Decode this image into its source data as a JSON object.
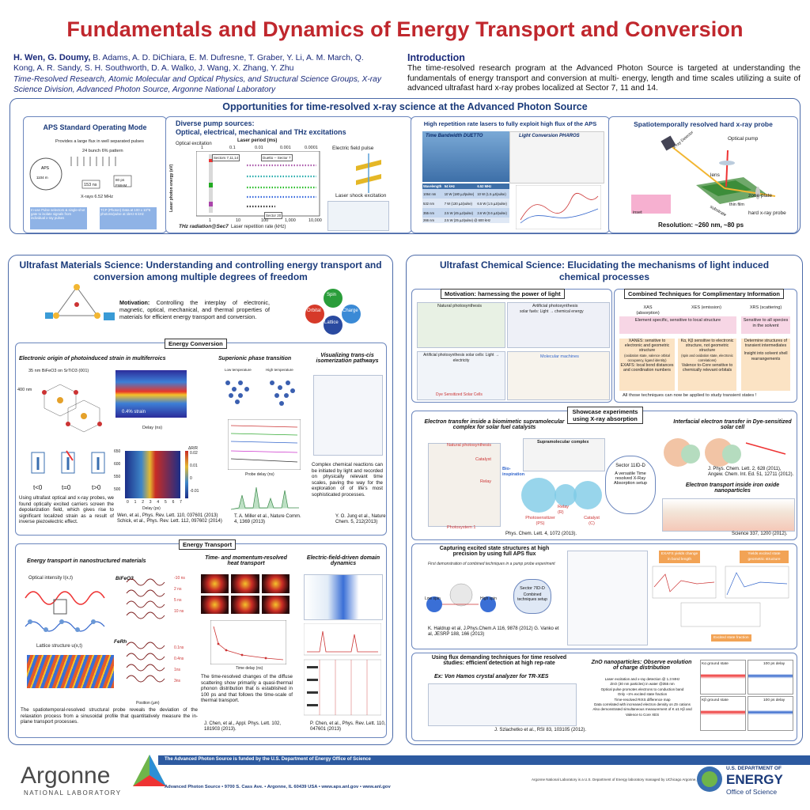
{
  "title": "Fundamentals and Dynamics of Energy Transport and Conversion",
  "authors_lead": "H. Wen, G. Doumy,",
  "authors_rest": " B. Adams, A. D. DiChiara, E. M. Dufresne, T. Graber, Y. Li, A. M. March, Q. Kong, A. R. Sandy, S. H. Southworth, D. A. Walko, J. Wang, X. Zhang, Y. Zhu",
  "affiliation": "Time-Resolved Research, Atomic Molecular and Optical Physics, and Structural Science Groups, X-ray Science Division, Advanced Photon Source, Argonne National Laboratory",
  "intro": {
    "heading": "Introduction",
    "text": "The time-resolved research program at the Advanced Photon Source is targeted at understanding the fundamentals of energy transport and conversion at multi- energy, length and time scales utilizing a suite of advanced ultrafast hard x-ray probes localized at Sector 7, 11 and 14."
  },
  "opportunities": {
    "heading": "Opportunities for time-resolved x-ray science at the Advanced Photon Source",
    "aps_mode": {
      "title": "APS Standard Operating Mode",
      "note1": "Provides a large flux in well separated pulses",
      "note2": "24 bunch 6% pattern",
      "aps": "APS",
      "circ": "1104 m",
      "ns": "153 ns",
      "ps": "80 ps FWHM",
      "rate": "X-rays 6.52 MHz",
      "info1": "In-use Pulse selectors & single-shot gate to isolate signals from individual x-ray pulses",
      "info2": "TCP (Photon) Data at 100 x 10^6 photons/pulse at 1kHz-6 kHz"
    },
    "pump": {
      "title1": "Diverse pump sources:",
      "title2": "Optical, electrical, mechanical and THz excitations",
      "optical": "Optical excitation",
      "period": "Laser period (ms)",
      "p_ticks": [
        "1",
        "0.1",
        "0.01",
        "0.001",
        "0.0001"
      ],
      "ylab": "Laser photon energy (eV)",
      "xlab": "Laser repetition rate (kHz)",
      "x_ticks": [
        "1",
        "10",
        "100",
        "1,000",
        "10,000"
      ],
      "sector1": "Sectors 7,11,14",
      "sector2": "Duetto -- Sector 7",
      "sector3": "Sector 20",
      "electric": "Electric field pulse",
      "shock": "Laser shock excitation",
      "thz": "THz radiation@Sec7"
    },
    "lasers": {
      "title": "High repetition rate lasers to fully exploit high flux of the APS",
      "duetto": "Time Bandwidth DUETTO",
      "pharos": "Light Conversion PHAROS",
      "table_head": [
        "Wavelength",
        "54 kHz",
        "6.52 MHz"
      ],
      "table_rows": [
        [
          "1064 nm",
          "10 W (180 µJ/pulse)",
          "10 W (1.5 µJ/pulse)"
        ],
        [
          "532 nm",
          "7 W (130 µJ/pulse)",
          "6.5 W (1.5 µJ/pulse)"
        ],
        [
          "355 nm",
          "2.5 W (45 µJ/pulse)",
          "3.6 W (0.6 µJ/pulse)"
        ],
        [
          "266 nm",
          "2.5 W (25 µJ/pulse) @ 600 kHz",
          ""
        ]
      ]
    },
    "probe": {
      "title": "Spatiotemporally resolved hard x-ray probe",
      "xray": "X-ray Detector",
      "pump": "Optical pump",
      "lens": "lens",
      "zone": "zone plate",
      "film": "thin film",
      "sub": "substrate",
      "hard": "hard x-ray probe",
      "res": "Resolution: ~260 nm, ~80 ps",
      "inset": "inset"
    }
  },
  "materials": {
    "heading": "Ultrafast Materials Science: Understanding and controlling energy transport and conversion among multiple degrees of freedom",
    "motivation_label": "Motivation:",
    "motivation_text": " Controlling the interplay of electronic, magnetic, optical, mechanical, and thermal properties of materials for efficient energy transport and conversion.",
    "spin": "Spin",
    "orbital": "Orbital",
    "charge": "Charge",
    "lattice": "Lattice",
    "energy_conversion": "Energy Conversion",
    "ec1_title": "Electronic origin of photoinduced strain in multiferroics",
    "ec1_sample": "35 nm BiFeO3 on SrTiO3 (001)",
    "ec1_400": "400 nm",
    "ec1_strain": "0.4% strain",
    "ec1_delay": "Delay (ns)",
    "ec1_lt": [
      "t<0",
      "t=0",
      "t>0"
    ],
    "ec1_text": "Using ultrafast optical and x-ray probes, we found optically excited carriers screen the depolarization field, which gives rise to significant localized strain as a result of inverse piezoelectric effect.",
    "ec1_ref1": "Wen, et al., Phys. Rev. Lett. 110, 037601 (2013)",
    "ec1_ref2": "Schick, et al., Phys. Rev. Lett. 112, 097602 (2014)",
    "ec1_dR": "ΔR/R",
    "ec1_wl": "Wavelength (nm)",
    "ec1_y_ticks": [
      "650",
      "600",
      "550",
      "500"
    ],
    "ec1_cbar": [
      "0.02",
      "0.01",
      "0",
      "-0.01"
    ],
    "ec1_delay_ps": "Delay (ps)",
    "ec1_x_ticks": [
      "0",
      "1",
      "2",
      "3",
      "4",
      "5",
      "6",
      "7"
    ],
    "ec2_title": "Superionic phase transition",
    "ec2_lt": "Low temperature",
    "ec2_ht": "High temperature",
    "ec2_probe": "Probe delay (ns)",
    "ec2_ref": "T. A. Miller et al., Nature Comm. 4, 1369 (2013)",
    "ec3_title": "Visualizing trans-cis isomerization pathways",
    "ec3_text": "Complex chemical reactions can be initiated by light and recorded on physically relevant time scales, paving the way for the exploration of of life's most sophisticated processes.",
    "ec3_ref": "Y. O. Jung et al., Nature Chem. 5, 212(2013)",
    "energy_transport": "Energy Transport",
    "et1_title": "Energy transport  in nanostructured materials",
    "et1_intensity": "Optical intensity I(x,t)",
    "et1_lattice": "Lattice structure u(x,t)",
    "et1_bifeo": "BiFeO3",
    "et1_feRh": "FeRh",
    "et1_pos": "Position (µm)",
    "et1_int": "Intensity (a.u.)",
    "et1_text": "The spatiotemporal-resolved structural probe reveals the deviation of the relaxation process from a sinusoidal profile that quantitatively measure the in-plane transport processes.",
    "et1_times": [
      "-10 ns",
      "2 ns",
      "5 ns",
      "10 ns",
      "20 ns"
    ],
    "et1_times2": [
      "0.1ns",
      "0.4ns",
      "1ns",
      "3ns",
      "7.4ns"
    ],
    "et2_title": "Time- and momentum-resolved heat transport",
    "et2_text": "The time-resolved changes of the diffuse scattering show primarily a quasi-thermal phonon distribution that is established in 100 ps and that follows the time-scale of thermal transport.",
    "et2_ref": "J. Chen, et al., Appl. Phys. Lett. 102, 181903 (2013).",
    "et2_time": "Time delay (ns)",
    "et3_title": "Electric-field-driven domain dynamics",
    "et3_ref": "P. Chen, et al., Phys. Rev. Lett. 110, 047601 (2013)"
  },
  "chemical": {
    "heading": "Ultrafast Chemical Science: Elucidating the mechanisms of light induced chemical processes",
    "motivation_title": "Motivation: harnessing the power of light",
    "np": "Natural photosynthesis",
    "ap": "Artificial photosynthesis",
    "ap2": "solar fuels: Light → chemical energy",
    "ap3": "Artificial photosynthesis solar cells: Light → electricity",
    "mol": "Molecular machines",
    "dye": "Dye Sensitized Solar Cells",
    "combined_title": "Combined Techniques for Complimentary Information",
    "xas": "XAS (absorption)",
    "xes": "XES (emission)",
    "xrs": "XRS (scattering)",
    "elem": "Element specific, sensitive to local structure",
    "solv": "Sensitive to all species in the solvent",
    "xanes": "XANES:  sensitive to electronic and geometric structure",
    "exafs": "EXAFS:  local bond distances and coordination numbers",
    "kb": "Kα, Kβ sensitive to electronic structure, not geometric structure",
    "val": "Valence to-Core sensitive to chemically relevant orbitals",
    "det": "Determine structures of transient intermediates",
    "ins": "Insight into solvent shell rearrangements",
    "xanes_sub": "(oxidation state, valence orbital occupancy, ligand identity)",
    "kb_sub": "(spin and oxidation state, electronic correlations)",
    "all": "All those techniques can now be applied to study transient states !",
    "showcase": "Showcase experiments using X-ray absorption",
    "et_title": "Electron transfer inside a biomimetic supramolecular complex for solar fuel catalysts",
    "np2": "Natural photosynthesis",
    "catalyst": "Catalyst",
    "relay": "Relay",
    "bio": "Bio-inspiration",
    "supra": "Supramolecular complex",
    "ps1": "Photosystem 1",
    "photosens": "Photosensitizer (PS)",
    "relay2": "Relay (R)",
    "cat2": "Catalyst (C)",
    "psref": "Phys. Chem. Lett. 4, 1072 (2013).",
    "sector": "Sector 11ID-D",
    "versatile": "A versatile Time resolved X-Ray Absorption setup",
    "inter_title": "Interfacial electron transfer in Dye-sensitized solar cell",
    "jp": "J. Phys. Chem. Lett. 2, 628 (2011), Angew. Chem. Int. Ed. 51, 12711 (2012).",
    "iron_title": "Electron transport inside iron oxide nanoparticles",
    "science": "Science 337, 1200 (2012).",
    "cap_title": "Capturing excited state structures at high precision by using full APS flux",
    "cap_sub": "First demonstration of combined techniques in a pump probe experiment",
    "sector7": "Sector 7ID-D",
    "combined_setup": "Combined techniques setup",
    "low": "Low spin",
    "high": "High spin",
    "cap_ref": "K. Haldrup et al, J.Phys.Chem.A 116, 9878 (2012) G. Vanko et al, JESRP 188, 166 (2013)",
    "exafs_change": "EXAFS yields change in bond length",
    "xdiff": "Yields excited state geometric structure",
    "excited": "Excited state fraction",
    "flux_title": "Using flux demanding techniques for time resolved studies: efficient detection at high rep-rate",
    "zno_title": "ZnO nanoparticles:  Observe evolution of charge distribution",
    "vh": "Ex: Von Hamos crystal analyzer for TR-XES",
    "vhref": "J. Szlachetko et al., RSI 83, 103105 (2012).",
    "zno_lines": [
      "Laser excitation and x-ray detection @ 1.3 MHz",
      "ZnO (30 nm particles) in water @355 nm",
      "Optical pulse promotes electrons to conduction band",
      "Only ~1% excited state fraction",
      "Time-resolved RIXS difference map",
      "Data correlated with increased electron density on Zn cations",
      "Also demonstrated simultaneous measurement of K α1 Kβ and Valence to Core XES"
    ],
    "ka": "Kα ground state",
    "kb2": "Kβ ground state",
    "d100": "100 ps delay"
  },
  "footer": {
    "funded": "The Advanced Photon Source is funded by the U.S. Department of Energy Office of Science",
    "address": "Advanced Photon Source • 9700 S. Cass Ave. • Argonne, IL 60439 USA • www.aps.anl.gov • www.anl.gov",
    "operated": "Argonne National Laboratory is a U.S. Department of Energy laboratory managed by UChicago Argonne, LLC.",
    "argonne": "Argonne",
    "national": "NATIONAL LABORATORY",
    "doe1": "U.S. DEPARTMENT OF",
    "doe2": "ENERGY",
    "doe3": "Office of Science"
  }
}
